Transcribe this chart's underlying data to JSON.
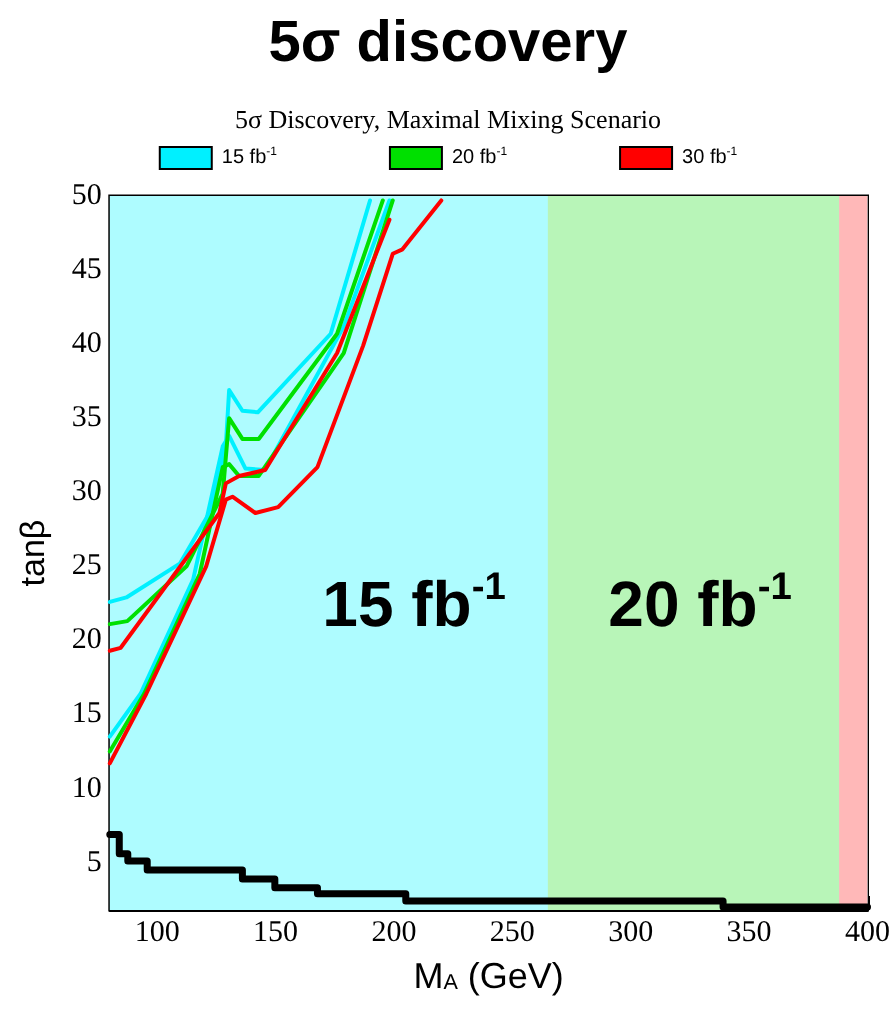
{
  "chart_data": {
    "type": "line",
    "title": "5σ discovery",
    "subtitle": "5σ Discovery, Maximal Mixing Scenario",
    "xlabel": "M$_{A}$ (GeV)",
    "ylabel": "tanβ",
    "xlim": [
      80,
      400
    ],
    "xticks": [
      100,
      150,
      200,
      250,
      300,
      350,
      400
    ],
    "ylim": [
      1.8,
      50
    ],
    "yticks": [
      5,
      10,
      15,
      20,
      25,
      30,
      35,
      40,
      45,
      50
    ],
    "grid": false,
    "legend": "top",
    "marker": "none",
    "line_style": "solid",
    "series": [
      {
        "name": "15 fb$^{-1}$",
        "color": "#00f0ff",
        "x": [
          80,
          87,
          109.7,
          123.5,
          129,
          130.4,
          136,
          142.5,
          173.3,
          189.9
        ],
        "values": [
          22.6,
          22.9,
          25.2,
          29,
          33.1,
          36.9,
          35.5,
          35.4,
          40.7,
          49.7
        ]
      },
      {
        "color": "#00f0ff",
        "x": [
          80,
          93,
          115.2,
          127.7,
          130.4,
          137.3,
          145.6,
          178.8,
          198.1
        ],
        "values": [
          13.5,
          16.4,
          24.1,
          33.1,
          33.8,
          31.6,
          31.5,
          41.2,
          49.7
        ]
      },
      {
        "name": "20 fb$^{-1}$",
        "color": "#00e000",
        "x": [
          80,
          87.4,
          112.4,
          127.7,
          130.4,
          136,
          142.9,
          176,
          195.3
        ],
        "values": [
          21.1,
          21.3,
          25,
          29.9,
          35,
          33.6,
          33.6,
          40.7,
          49.7
        ]
      },
      {
        "color": "#00e000",
        "x": [
          80,
          94.5,
          118,
          127.7,
          130.4,
          134.6,
          142.9,
          178.8,
          199.5
        ],
        "values": [
          12.5,
          16.4,
          24.5,
          31.7,
          31.9,
          31.1,
          31.1,
          39.4,
          49.7
        ]
      },
      {
        "name": "30 fb$^{-1}$",
        "color": "#ff0000",
        "x": [
          80,
          84.6,
          126.3,
          129,
          134.6,
          145.6,
          176,
          198.1
        ],
        "values": [
          19.3,
          19.5,
          28.6,
          30.6,
          31.1,
          31.5,
          39.4,
          48.4
        ]
      },
      {
        "color": "#ff0000",
        "x": [
          80,
          95.4,
          120.7,
          129,
          131.8,
          141.5,
          151.1,
          167.7,
          187,
          199.5,
          203.6,
          220
        ],
        "values": [
          11.7,
          16.4,
          25,
          29.5,
          29.7,
          28.6,
          29,
          31.7,
          39.9,
          46.1,
          46.4,
          49.7
        ]
      },
      {
        "type": "step",
        "color": "#000000",
        "x": [
          80,
          84,
          87.6,
          95.8,
          136,
          149.7,
          167.7,
          205,
          339,
          400
        ],
        "values": [
          6.9,
          5.6,
          5.1,
          4.5,
          3.9,
          3.3,
          2.9,
          2.4,
          2.0,
          2.0
        ]
      }
    ],
    "bands": [
      {
        "axis": "x",
        "from": 80,
        "to": 400,
        "color": "#aefcff"
      },
      {
        "axis": "x",
        "from": 265,
        "to": 388,
        "color": "#b8f5b8"
      },
      {
        "axis": "x",
        "from": 388,
        "to": 400,
        "color": "#ffb8b8"
      }
    ],
    "annotations": [
      "15 fb$^{-1}$",
      "20 fb$^{-1}$"
    ]
  }
}
